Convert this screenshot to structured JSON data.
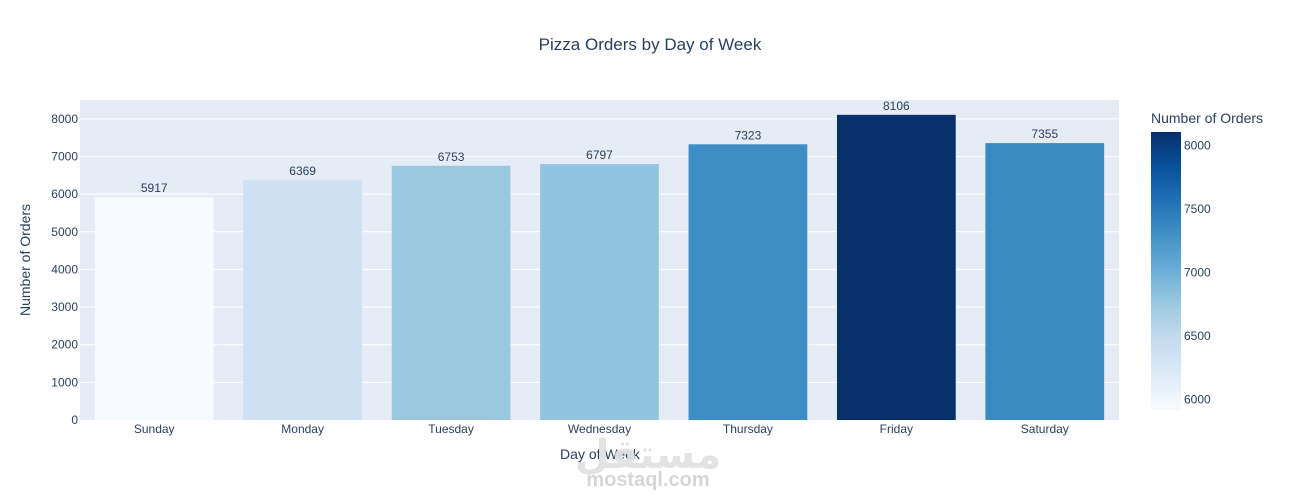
{
  "chart_data": {
    "type": "bar",
    "title": "Pizza Orders by Day of Week",
    "xlabel": "Day of Week",
    "ylabel": "Number of Orders",
    "categories": [
      "Sunday",
      "Monday",
      "Tuesday",
      "Wednesday",
      "Thursday",
      "Friday",
      "Saturday"
    ],
    "values": [
      5917,
      6369,
      6753,
      6797,
      7323,
      8106,
      7355
    ],
    "ylim": [
      0,
      8500
    ],
    "yticks": [
      0,
      1000,
      2000,
      3000,
      4000,
      5000,
      6000,
      7000,
      8000
    ],
    "grid": true,
    "colorbar": {
      "title": "Number of Orders",
      "range": [
        5917,
        8106
      ],
      "ticks": [
        6000,
        6500,
        7000,
        7500,
        8000
      ],
      "colorscale": [
        "#f7fbff",
        "#deebf7",
        "#c6dbef",
        "#9ecae1",
        "#6baed6",
        "#4292c6",
        "#2171b5",
        "#08519c",
        "#08306b"
      ]
    }
  },
  "colors": {
    "plot_bg": "#e5ecf6",
    "grid": "#ffffff",
    "text": "#2a3f5f"
  },
  "watermark": {
    "arabic": "مستقل",
    "latin": "mostaql.com"
  }
}
